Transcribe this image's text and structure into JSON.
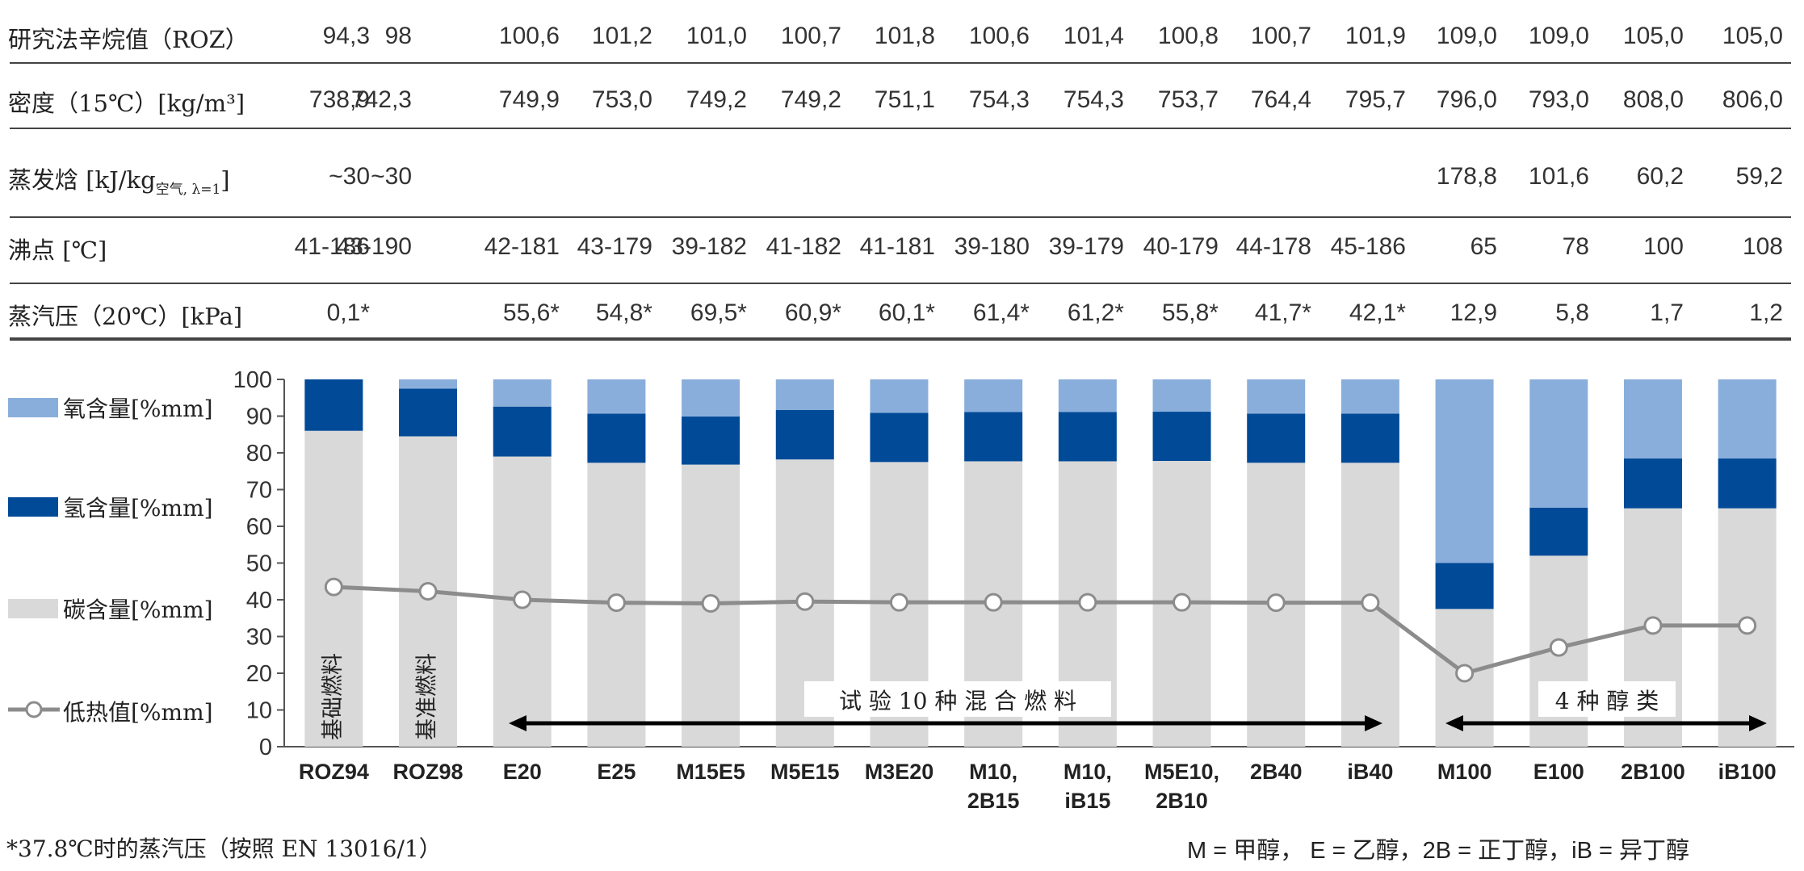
{
  "table": {
    "rows": [
      {
        "label": "研究法辛烷值（ROZ）",
        "values": [
          "94,3",
          "98",
          "100,6",
          "101,2",
          "101,0",
          "100,7",
          "101,8",
          "100,6",
          "101,4",
          "100,8",
          "100,7",
          "101,9",
          "109,0",
          "109,0",
          "105,0",
          "105,0"
        ]
      },
      {
        "label": "密度（15℃）[kg/m³]",
        "values": [
          "738,9",
          "742,3",
          "749,9",
          "753,0",
          "749,2",
          "749,2",
          "751,1",
          "754,3",
          "754,3",
          "753,7",
          "764,4",
          "795,7",
          "796,0",
          "793,0",
          "808,0",
          "806,0"
        ]
      },
      {
        "label": "蒸发焓 [kJ/kg",
        "label_sub": "空气, λ=1",
        "label_end": "]",
        "values": [
          "~30",
          "~30",
          "",
          "",
          "",
          "",
          "",
          "",
          "",
          "",
          "",
          "",
          "178,8",
          "101,6",
          "60,2",
          "59,2"
        ]
      },
      {
        "label": "沸点 [℃]",
        "values": [
          "41-186",
          "43-190",
          "42-181",
          "43-179",
          "39-182",
          "41-182",
          "41-181",
          "39-180",
          "39-179",
          "40-179",
          "44-178",
          "45-186",
          "65",
          "78",
          "100",
          "108"
        ]
      },
      {
        "label": "蒸汽压（20℃）[kPa]",
        "values": [
          "0,1*",
          "",
          "55,6*",
          "54,8*",
          "69,5*",
          "60,9*",
          "60,1*",
          "61,4*",
          "61,2*",
          "55,8*",
          "41,7*",
          "42,1*",
          "12,9",
          "5,8",
          "1,7",
          "1,2"
        ]
      }
    ]
  },
  "legend": {
    "oxygen": "氧含量[%mm]",
    "hydrogen": "氢含量[%mm]",
    "carbon": "碳含量[%mm]",
    "lhv": "低热值[%mm]"
  },
  "annotations": {
    "base_fuel": "基础燃料",
    "ref_fuel": "基准燃料",
    "mixtures": "试 验 10 种 混 合 燃 料",
    "alcohols": "4 种 醇 类"
  },
  "footnote": "*37.8℃时的蒸汽压（按照 EN 13016/1）",
  "abbreviations": "M = 甲醇， E = 乙醇，2B = 正丁醇，iB = 异丁醇",
  "chart_data": {
    "type": "bar",
    "stacked": true,
    "categories": [
      [
        "ROZ94"
      ],
      [
        "ROZ98"
      ],
      [
        "E20"
      ],
      [
        "E25"
      ],
      [
        "M15E5"
      ],
      [
        "M5E15"
      ],
      [
        "M3E20"
      ],
      [
        "M10,",
        "2B15"
      ],
      [
        "M10,",
        "iB15"
      ],
      [
        "M5E10,",
        "2B10"
      ],
      [
        "2B40"
      ],
      [
        "iB40"
      ],
      [
        "M100"
      ],
      [
        "E100"
      ],
      [
        "2B100"
      ],
      [
        "iB100"
      ]
    ],
    "series": [
      {
        "name": "碳含量[%mm]",
        "color": "#d9d9d9",
        "values": [
          86,
          84.5,
          79,
          77.3,
          76.8,
          78.2,
          77.5,
          77.7,
          77.7,
          77.8,
          77.3,
          77.3,
          37.5,
          52,
          64.9,
          64.9
        ]
      },
      {
        "name": "氢含量[%mm]",
        "color": "#004a98",
        "values": [
          14,
          13,
          13.6,
          13.4,
          13.1,
          13.5,
          13.4,
          13.4,
          13.4,
          13.4,
          13.4,
          13.4,
          12.5,
          13.1,
          13.6,
          13.6
        ]
      },
      {
        "name": "氧含量[%mm]",
        "color": "#8aaedb",
        "values": [
          0,
          2.5,
          7.4,
          9.3,
          10.1,
          8.3,
          9.1,
          8.9,
          8.9,
          8.8,
          9.3,
          9.3,
          50,
          34.9,
          21.5,
          21.5
        ]
      }
    ],
    "line": {
      "name": "低热值[%mm]",
      "values": [
        43.5,
        42.3,
        40,
        39.2,
        39,
        39.5,
        39.3,
        39.3,
        39.3,
        39.3,
        39.2,
        39.2,
        20,
        27,
        33,
        33
      ]
    },
    "ylim": [
      0,
      100
    ],
    "yticks": [
      0,
      10,
      20,
      30,
      40,
      50,
      60,
      70,
      80,
      90,
      100
    ],
    "colors": {
      "carbon": "#d9d9d9",
      "hydrogen": "#004a98",
      "oxygen": "#8aaedb",
      "line": "#8c8c8c"
    }
  }
}
